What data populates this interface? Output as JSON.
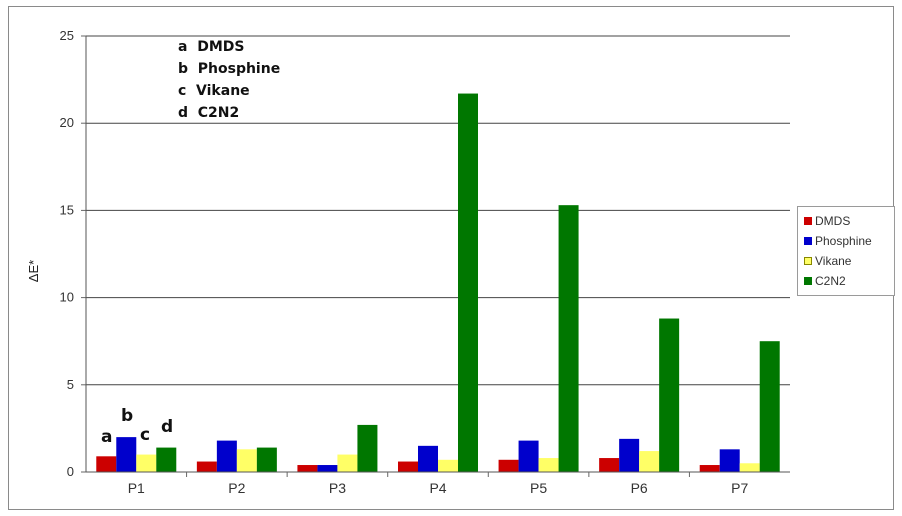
{
  "chart_data": {
    "type": "bar",
    "ylabel": "ΔE*",
    "ylim": [
      0,
      25
    ],
    "yticks": [
      0,
      5,
      10,
      15,
      20,
      25
    ],
    "grid": true,
    "legend_position": "right",
    "categories": [
      "P1",
      "P2",
      "P3",
      "P4",
      "P5",
      "P6",
      "P7"
    ],
    "series": [
      {
        "name": "DMDS",
        "color": "#cc0000",
        "values": [
          0.9,
          0.6,
          0.4,
          0.6,
          0.7,
          0.8,
          0.4
        ]
      },
      {
        "name": "Phosphine",
        "color": "#0000cc",
        "values": [
          2.0,
          1.8,
          0.4,
          1.5,
          1.8,
          1.9,
          1.3
        ]
      },
      {
        "name": "Vikane",
        "color": "#ffff66",
        "values": [
          1.0,
          1.3,
          1.0,
          0.7,
          0.8,
          1.2,
          0.5
        ]
      },
      {
        "name": "C2N2",
        "color": "#007700",
        "values": [
          1.4,
          1.4,
          2.7,
          21.7,
          15.3,
          8.8,
          7.5
        ]
      }
    ],
    "annotations": {
      "key_lines": [
        "a  DMDS",
        "b  Phosphine",
        "c  Vikane",
        "d  C2N2"
      ],
      "bar_letters": [
        "a",
        "b",
        "c",
        "d"
      ]
    }
  }
}
